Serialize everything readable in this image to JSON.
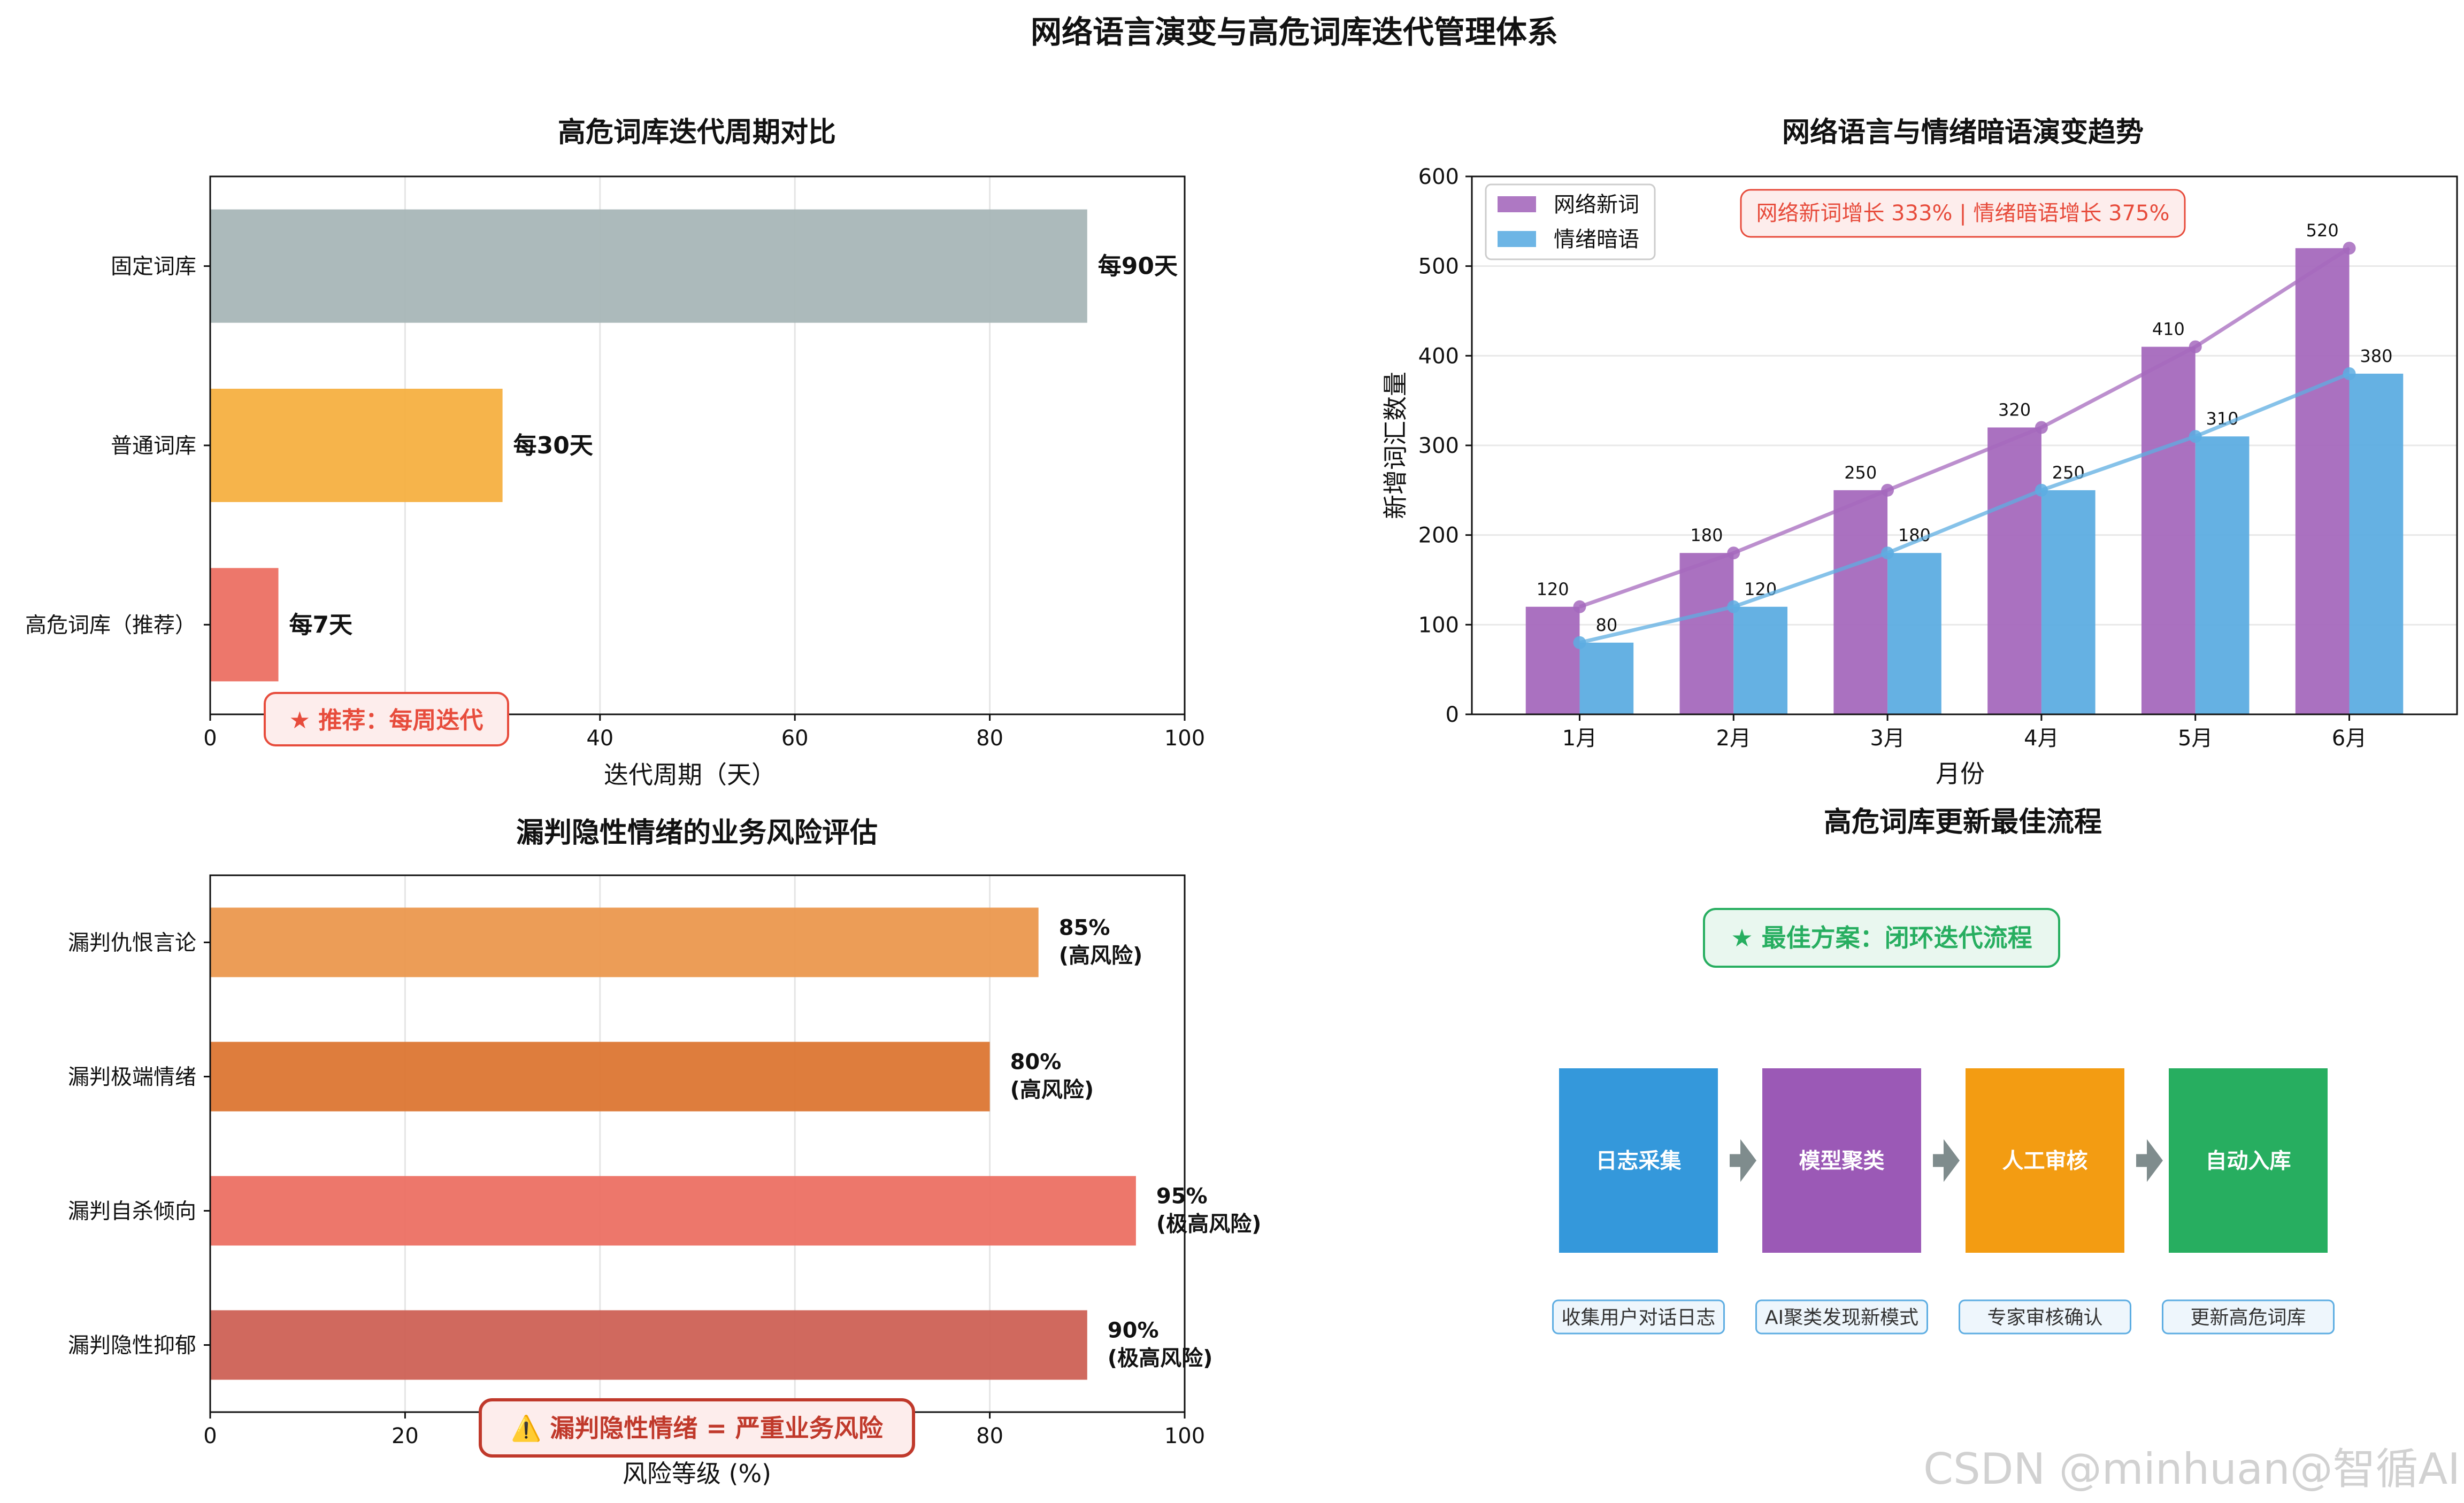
{
  "suptitle": "网络语言演变与高危词库迭代管理体系",
  "watermark": "CSDN @minhuan@智循AI",
  "chart_data": [
    {
      "type": "bar",
      "orientation": "horizontal",
      "title": "高危词库迭代周期对比",
      "xlabel": "迭代周期（天）",
      "ylabel": "",
      "xlim": [
        0,
        100
      ],
      "xticks": [
        "0",
        "20",
        "40",
        "60",
        "80",
        "100"
      ],
      "grid": "x",
      "categories": [
        "固定词库",
        "普通词库",
        "高危词库（推荐）"
      ],
      "values": [
        90,
        30,
        7
      ],
      "data_labels": [
        "每90天",
        "每30天",
        "每7天"
      ],
      "colors": [
        "#a8b6b7",
        "#f5b041",
        "#ec7063"
      ],
      "annotation": "★ 推荐：每周迭代"
    },
    {
      "type": "bar",
      "title": "网络语言与情绪暗语演变趋势",
      "xlabel": "月份",
      "ylabel": "新增词汇数量",
      "ylim": [
        0,
        600
      ],
      "yticks": [
        "0",
        "100",
        "200",
        "300",
        "400",
        "500",
        "600"
      ],
      "grid": "y",
      "categories": [
        "1月",
        "2月",
        "3月",
        "4月",
        "5月",
        "6月"
      ],
      "series": [
        {
          "name": "网络新词",
          "values": [
            120,
            180,
            250,
            320,
            410,
            520
          ],
          "color": "#a569bd",
          "line": true
        },
        {
          "name": "情绪暗语",
          "values": [
            80,
            120,
            180,
            250,
            310,
            380
          ],
          "color": "#5dade2",
          "line": true
        }
      ],
      "legend": "top-left",
      "annotation": "网络新词增长 333% | 情绪暗语增长 375%"
    },
    {
      "type": "bar",
      "orientation": "horizontal",
      "title": "漏判隐性情绪的业务风险评估",
      "xlabel": "风险等级 (%)",
      "ylabel": "",
      "xlim": [
        0,
        100
      ],
      "xticks": [
        "0",
        "20",
        "40",
        "60",
        "80",
        "100"
      ],
      "grid": "x",
      "categories": [
        "漏判仇恨言论",
        "漏判极端情绪",
        "漏判自杀倾向",
        "漏判隐性抑郁"
      ],
      "values": [
        85,
        80,
        95,
        90
      ],
      "data_labels": [
        [
          "85%",
          "(高风险)"
        ],
        [
          "80%",
          "(高风险)"
        ],
        [
          "95%",
          "(极高风险)"
        ],
        [
          "90%",
          "(极高风险)"
        ]
      ],
      "colors": [
        "#eb984e",
        "#dc7633",
        "#ec7063",
        "#cd6155"
      ],
      "annotation": "⚠️ 漏判隐性情绪 = 严重业务风险"
    }
  ],
  "flow": {
    "title": "高危词库更新最佳流程",
    "badge": "★ 最佳方案：闭环迭代流程",
    "steps": [
      {
        "label": "日志采集",
        "desc": "收集用户对话日志",
        "color": "#3498db"
      },
      {
        "label": "模型聚类",
        "desc": "AI聚类发现新模式",
        "color": "#9b59b6"
      },
      {
        "label": "人工审核",
        "desc": "专家审核确认",
        "color": "#f39c12"
      },
      {
        "label": "自动入库",
        "desc": "更新高危词库",
        "color": "#27ae60"
      }
    ],
    "arrow_color": "#7f8c8d"
  }
}
